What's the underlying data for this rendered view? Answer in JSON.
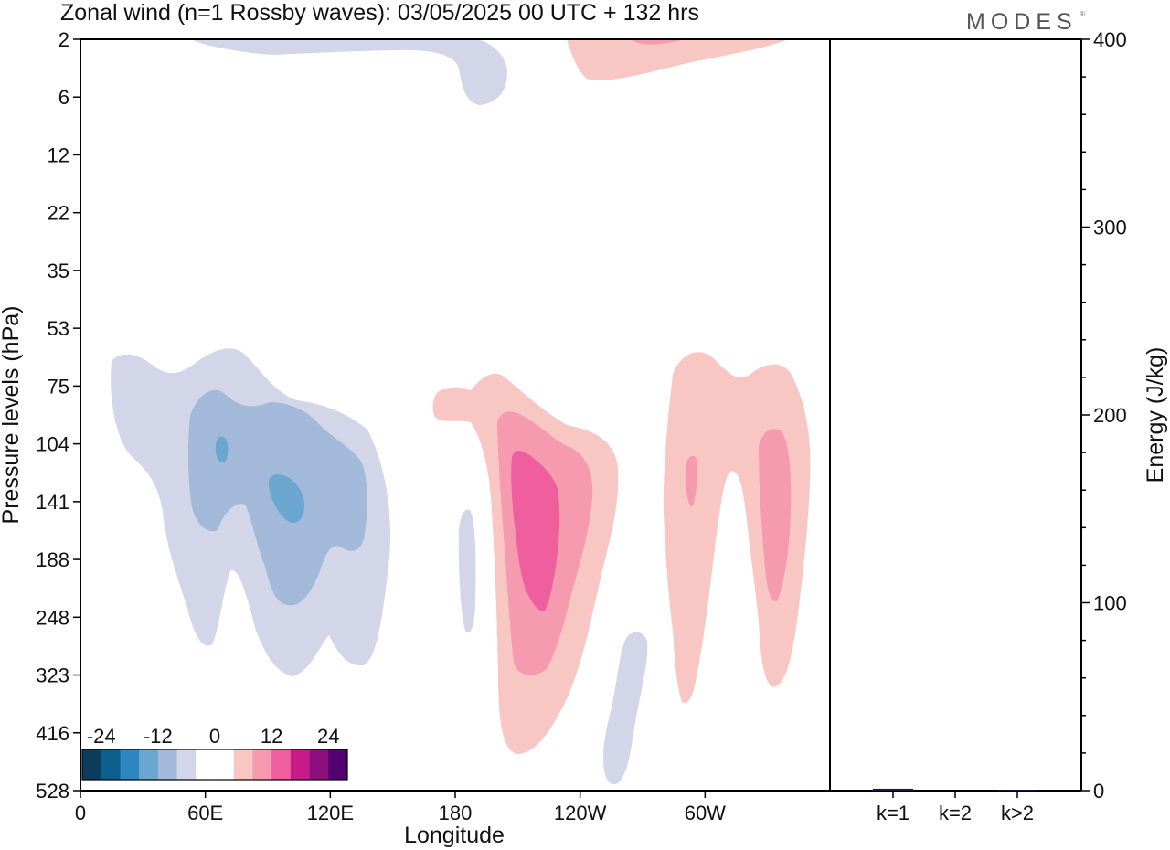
{
  "title": "Zonal wind (n=1 Rossby waves):  03/05/2025  00 UTC  + 132 hrs",
  "logo": "MODES",
  "chart_data": [
    {
      "type": "contour",
      "xlabel": "Longitude",
      "ylabel": "Pressure levels (hPa)",
      "x_ticks": [
        "0",
        "60E",
        "120E",
        "180",
        "120W",
        "60W"
      ],
      "x_range": [
        0,
        360
      ],
      "y_ticks": [
        "2",
        "6",
        "12",
        "22",
        "35",
        "53",
        "75",
        "104",
        "141",
        "188",
        "248",
        "323",
        "416",
        "528"
      ],
      "colorbar": {
        "labels": [
          "-24",
          "-12",
          "0",
          "12",
          "24"
        ],
        "colors": [
          "#0e3c5e",
          "#0a5f8c",
          "#2e86bf",
          "#6aa6d0",
          "#a2b9da",
          "#d3d6e8",
          "#ffffff",
          "#ffffff",
          "#f9c7c3",
          "#f59aaf",
          "#ef5f9d",
          "#c61c8a",
          "#8d0f7e",
          "#520072"
        ]
      },
      "features": [
        {
          "sign": "negative",
          "max_level": -6,
          "lon": [
            8,
            148
          ],
          "lev": [
            75,
            323
          ]
        },
        {
          "sign": "negative",
          "max_level": -9,
          "lon": [
            52,
            128
          ],
          "lev": [
            85,
            248
          ]
        },
        {
          "sign": "negative",
          "max_level": -12,
          "lon": [
            68,
            108
          ],
          "lev": [
            100,
            160
          ]
        },
        {
          "sign": "negative",
          "max_level": -6,
          "lon": [
            180,
            185
          ],
          "lev": [
            141,
            248
          ]
        },
        {
          "sign": "negative",
          "max_level": -6,
          "lon": [
            254,
            275
          ],
          "lev": [
            323,
            528
          ]
        },
        {
          "sign": "negative",
          "max_level": -6,
          "lon": [
            55,
            205
          ],
          "lev": [
            2,
            6
          ]
        },
        {
          "sign": "positive",
          "max_level": 6,
          "lon": [
            170,
            262
          ],
          "lev": [
            75,
            416
          ]
        },
        {
          "sign": "positive",
          "max_level": 9,
          "lon": [
            197,
            242
          ],
          "lev": [
            104,
            323
          ]
        },
        {
          "sign": "positive",
          "max_level": 12,
          "lon": [
            207,
            232
          ],
          "lev": [
            115,
            248
          ]
        },
        {
          "sign": "positive",
          "max_level": 6,
          "lon": [
            283,
            351
          ],
          "lev": [
            75,
            323
          ]
        },
        {
          "sign": "positive",
          "max_level": 9,
          "lon": [
            293,
            300
          ],
          "lev": [
            115,
            141
          ]
        },
        {
          "sign": "positive",
          "max_level": 9,
          "lon": [
            327,
            346
          ],
          "lev": [
            104,
            248
          ]
        },
        {
          "sign": "positive",
          "max_level": 6,
          "lon": [
            235,
            342
          ],
          "lev": [
            2,
            6
          ]
        }
      ]
    },
    {
      "type": "bar",
      "ylabel": "Energy (J/kg)",
      "categories": [
        "k=1",
        "k=2",
        "k>2"
      ],
      "values": [
        1,
        0,
        0.4
      ],
      "ylim": [
        0,
        400
      ],
      "y_ticks": [
        "0",
        "100",
        "200",
        "300",
        "400"
      ]
    }
  ]
}
